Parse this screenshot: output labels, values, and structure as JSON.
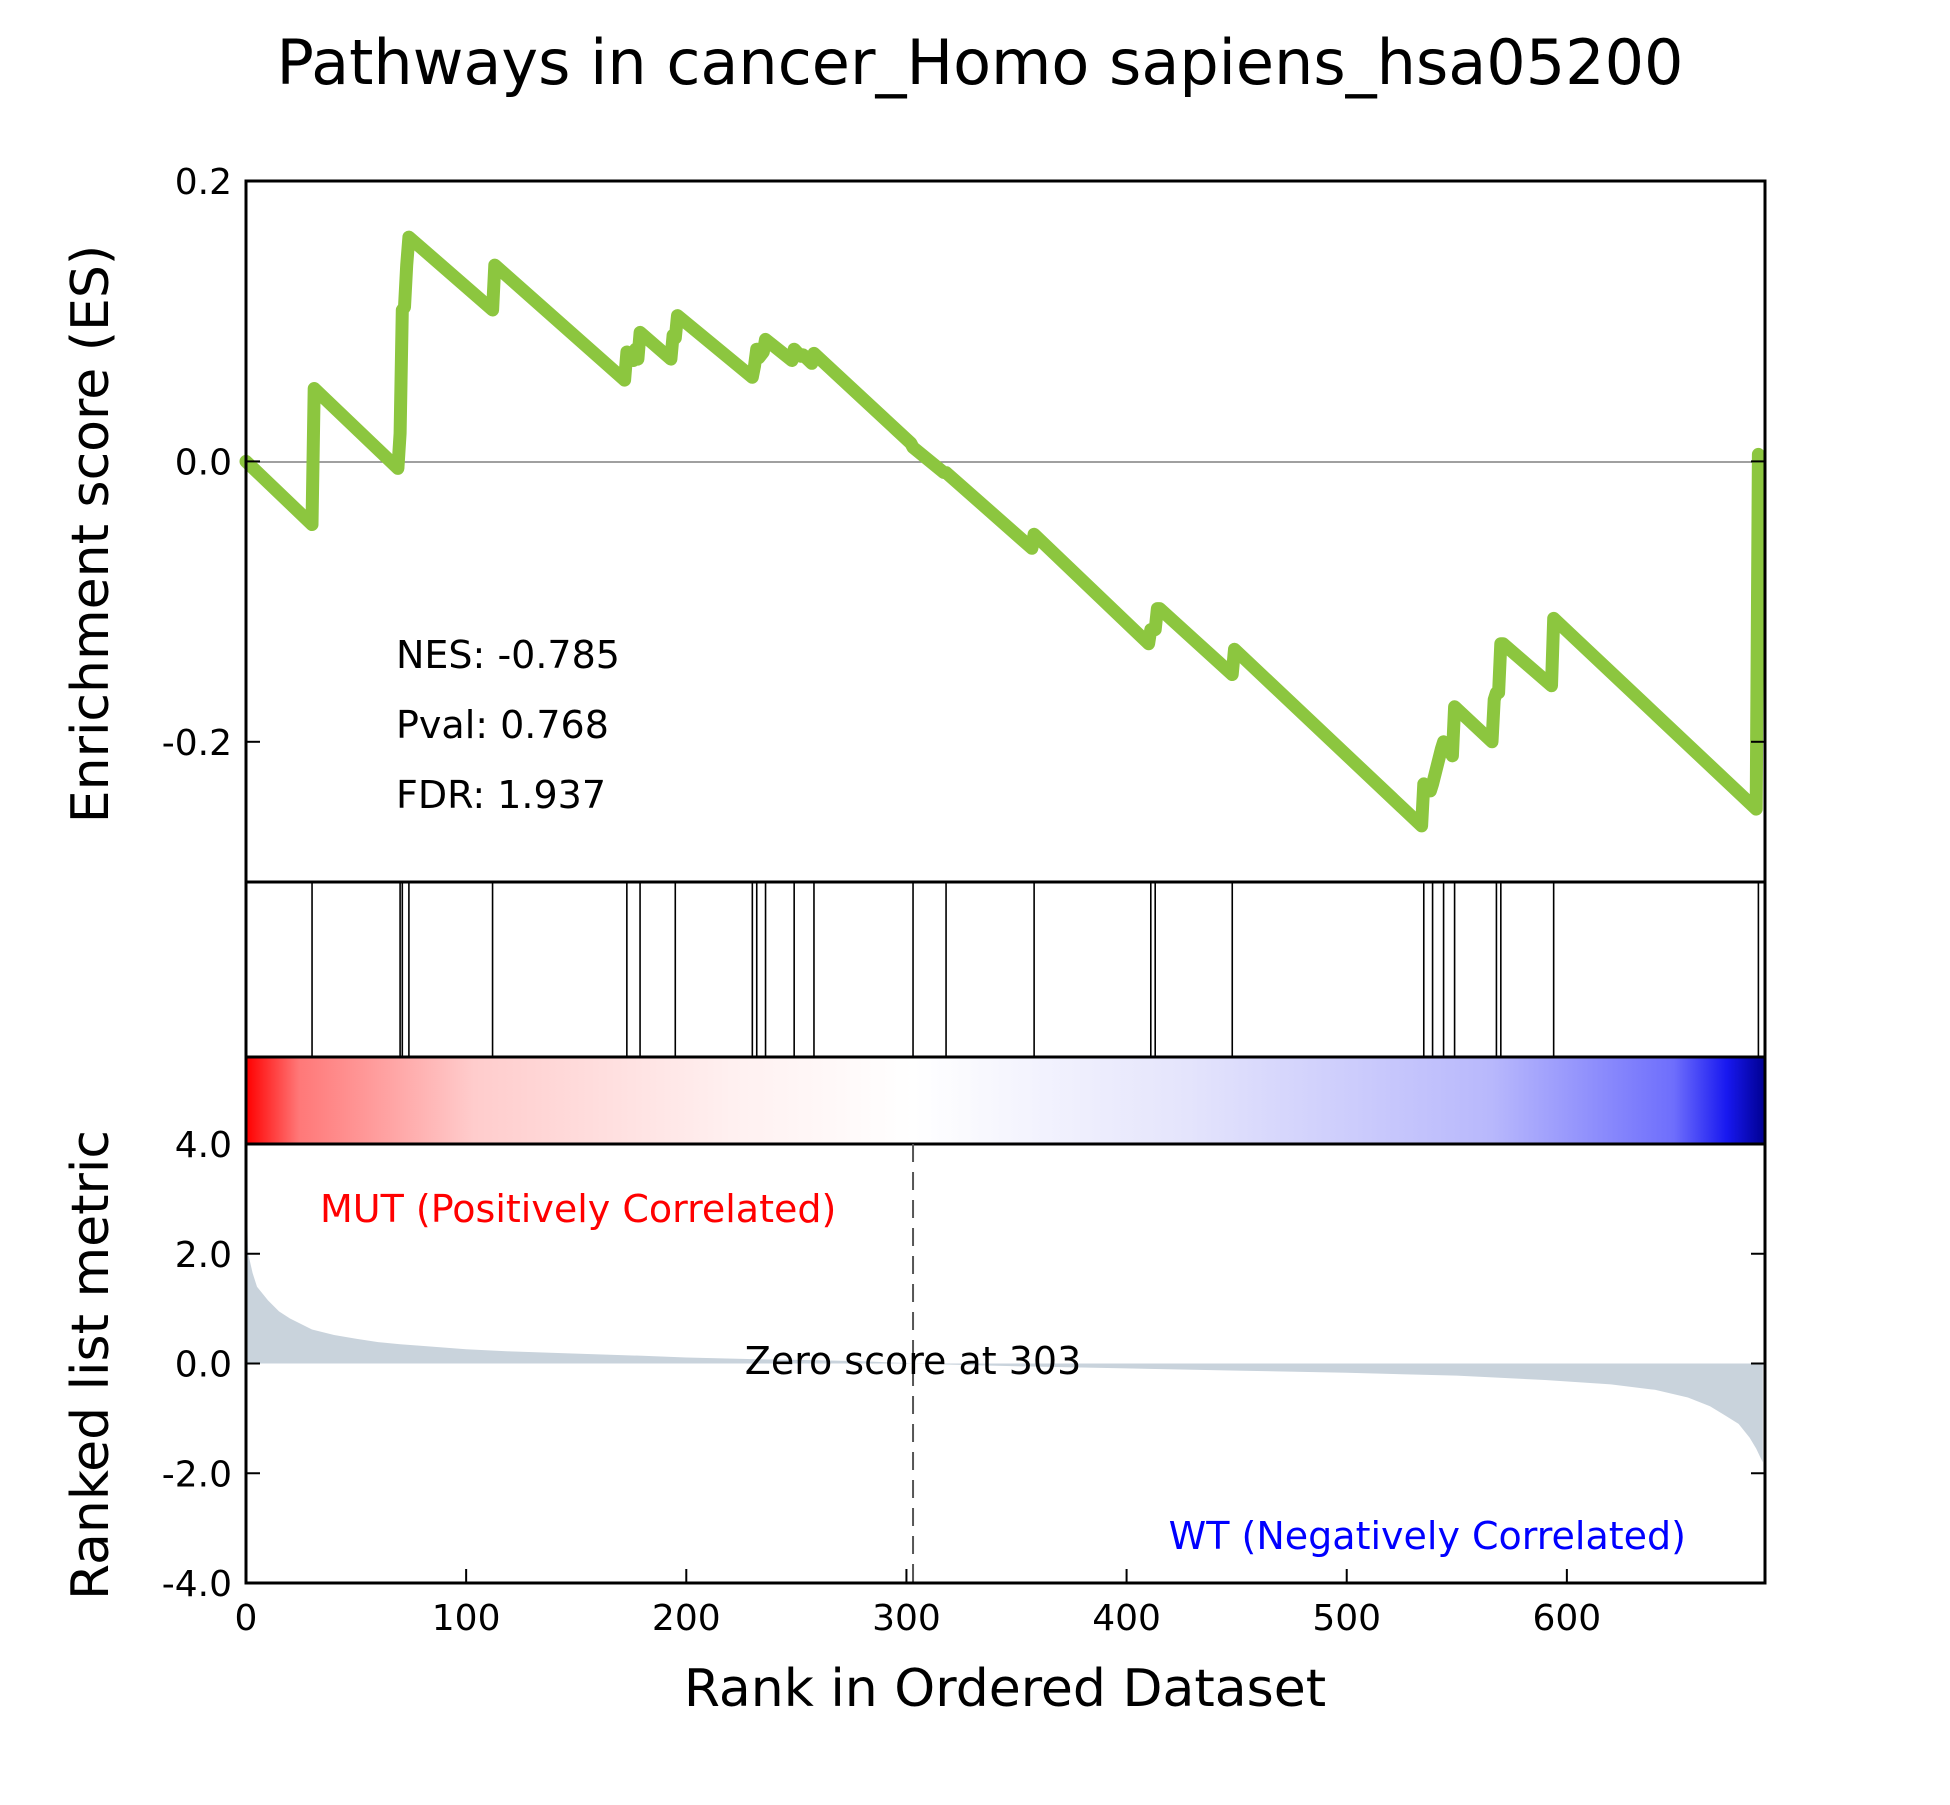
{
  "chart_data": {
    "type": "line",
    "title": "Pathways in cancer_Homo sapiens_hsa05200",
    "es_panel": {
      "ylabel": "Enrichment score (ES)",
      "ylim": [
        -0.3,
        0.2
      ],
      "yticks": [
        0.2,
        0.0,
        -0.2
      ],
      "ytick_labels": [
        "0.2",
        "0.0",
        "-0.2"
      ],
      "line_color": "#8cc63f",
      "stats": [
        {
          "label": "NES: -0.785"
        },
        {
          "label": "Pval: 0.768"
        },
        {
          "label": "FDR: 1.937"
        }
      ],
      "series": [
        {
          "name": "",
          "x": [
            0,
            30,
            31,
            69,
            70,
            71,
            72,
            73,
            74,
            112,
            113,
            172,
            173,
            176,
            177,
            178,
            179,
            193,
            194,
            195,
            196,
            230,
            231,
            232,
            233,
            235,
            236,
            248,
            249,
            252,
            253,
            257,
            258,
            302,
            303,
            317,
            318,
            357,
            358,
            410,
            411,
            412,
            413,
            414,
            415,
            448,
            449,
            534,
            535,
            538,
            539,
            543,
            544,
            548,
            549,
            566,
            567,
            568,
            569,
            570,
            571,
            593,
            594,
            686,
            687
          ],
          "y": [
            0.0,
            -0.045,
            0.052,
            -0.005,
            0.02,
            0.108,
            0.11,
            0.14,
            0.16,
            0.108,
            0.14,
            0.058,
            0.078,
            0.072,
            0.08,
            0.073,
            0.092,
            0.073,
            0.09,
            0.088,
            0.104,
            0.06,
            0.068,
            0.08,
            0.074,
            0.078,
            0.087,
            0.072,
            0.08,
            0.075,
            0.076,
            0.07,
            0.077,
            0.013,
            0.01,
            -0.008,
            -0.008,
            -0.062,
            -0.052,
            -0.13,
            -0.12,
            -0.12,
            -0.12,
            -0.105,
            -0.105,
            -0.152,
            -0.134,
            -0.26,
            -0.23,
            -0.235,
            -0.23,
            -0.205,
            -0.2,
            -0.21,
            -0.175,
            -0.2,
            -0.17,
            -0.165,
            -0.165,
            -0.13,
            -0.13,
            -0.16,
            -0.112,
            -0.248,
            0.005
          ]
        }
      ]
    },
    "hits": [
      30,
      70,
      71,
      74,
      112,
      173,
      179,
      195,
      230,
      232,
      236,
      249,
      258,
      303,
      318,
      358,
      411,
      413,
      448,
      535,
      539,
      544,
      549,
      568,
      570,
      594,
      687
    ],
    "metric_panel": {
      "ylabel": "Ranked list metric",
      "ylim": [
        -4.0,
        4.0
      ],
      "yticks": [
        4.0,
        2.0,
        0.0,
        -2.0,
        -4.0
      ],
      "ytick_labels": [
        "4.0",
        "2.0",
        "0.0",
        "-2.0",
        "-4.0"
      ],
      "fill_color": "#c9d3dc",
      "zero_cross": 303,
      "zero_label": "Zero score at 303",
      "pos_label": "MUT (Positively Correlated)",
      "neg_label": "WT (Negatively Correlated)",
      "pos_color": "#ff0000",
      "neg_color": "#0000ff",
      "profile": {
        "x": [
          0,
          1,
          3,
          5,
          10,
          15,
          20,
          25,
          30,
          40,
          50,
          60,
          70,
          80,
          100,
          120,
          150,
          180,
          200,
          230,
          260,
          280,
          300,
          303,
          320,
          350,
          400,
          450,
          500,
          550,
          590,
          620,
          640,
          655,
          665,
          672,
          678,
          683,
          686,
          688,
          689
        ],
        "y": [
          3.4,
          2.0,
          1.65,
          1.4,
          1.15,
          0.95,
          0.82,
          0.72,
          0.62,
          0.52,
          0.45,
          0.39,
          0.35,
          0.32,
          0.26,
          0.22,
          0.18,
          0.14,
          0.11,
          0.08,
          0.06,
          0.04,
          0.01,
          0.0,
          -0.02,
          -0.05,
          -0.09,
          -0.13,
          -0.17,
          -0.22,
          -0.3,
          -0.38,
          -0.48,
          -0.62,
          -0.78,
          -0.95,
          -1.1,
          -1.35,
          -1.55,
          -1.72,
          -1.8
        ]
      }
    },
    "xlabel": "Rank in Ordered Dataset",
    "xlim": [
      0,
      690
    ],
    "xticks": [
      0,
      100,
      200,
      300,
      400,
      500,
      600
    ],
    "xtick_labels": [
      "0",
      "100",
      "200",
      "300",
      "400",
      "500",
      "600"
    ]
  }
}
